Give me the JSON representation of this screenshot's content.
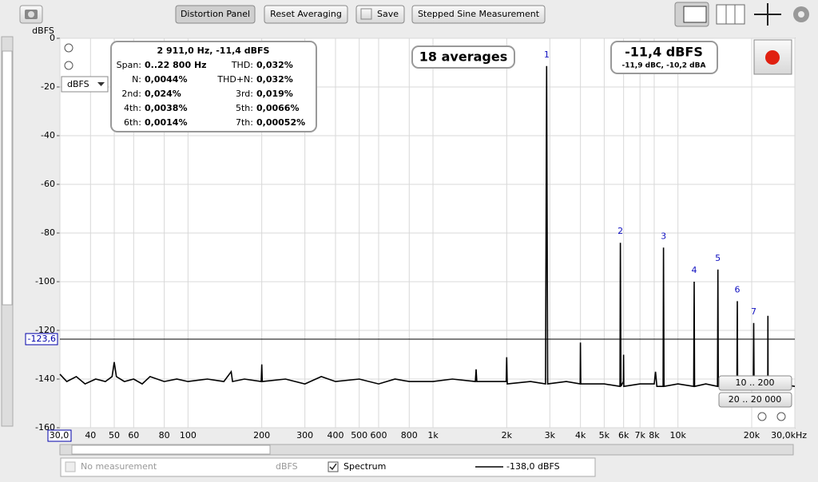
{
  "toolbar": {
    "buttons": [
      "Distortion Panel",
      "Reset Averaging",
      "Save",
      "Stepped Sine Measurement"
    ]
  },
  "chart_data": {
    "type": "line",
    "y_label": "dBFS",
    "unit_select": "dBFS",
    "log_x": true,
    "grid": true,
    "xlim": [
      30,
      30000
    ],
    "ylim": [
      -160,
      0
    ],
    "xticks": [
      {
        "value": 30,
        "label": "30,0"
      },
      40,
      50,
      60,
      80,
      100,
      200,
      300,
      400,
      500,
      600,
      800,
      {
        "value": 1000,
        "label": "1k"
      },
      {
        "value": 2000,
        "label": "2k"
      },
      {
        "value": 3000,
        "label": "3k"
      },
      {
        "value": 4000,
        "label": "4k"
      },
      {
        "value": 5000,
        "label": "5k"
      },
      {
        "value": 6000,
        "label": "6k"
      },
      {
        "value": 7000,
        "label": "7k"
      },
      {
        "value": 8000,
        "label": "8k"
      },
      {
        "value": 10000,
        "label": "10k"
      },
      {
        "value": 20000,
        "label": "20k"
      },
      {
        "value": 30000,
        "label": "30,0kHz"
      }
    ],
    "yticks": [
      0,
      -20,
      -40,
      -60,
      -80,
      -100,
      -120,
      -140,
      -160
    ],
    "series": [
      {
        "name": "Spectrum",
        "color": "#000000",
        "x": [
          30,
          32,
          35,
          38,
          42,
          46,
          49,
          50,
          51,
          55,
          60,
          65,
          70,
          80,
          90,
          100,
          120,
          140,
          150,
          152,
          170,
          199,
          200,
          201,
          250,
          300,
          350,
          400,
          500,
          600,
          700,
          800,
          1000,
          1200,
          1490,
          1500,
          1510,
          1800,
          1990,
          2000,
          2010,
          2500,
          2880,
          2911,
          2940,
          3500,
          3990,
          4000,
          4010,
          5000,
          5800,
          5822,
          5850,
          5990,
          6000,
          6010,
          7000,
          8000,
          8100,
          8200,
          8700,
          8733,
          8770,
          10000,
          11600,
          11644,
          11690,
          13000,
          14500,
          14555,
          14610,
          17400,
          17466,
          17530,
          20300,
          20377,
          20450,
          23250,
          23288,
          23330,
          26000,
          30000
        ],
        "values": [
          -138,
          -141,
          -139,
          -142,
          -140,
          -141,
          -139,
          -133,
          -139,
          -141,
          -140,
          -142,
          -139,
          -141,
          -140,
          -141,
          -140,
          -141,
          -137,
          -141,
          -140,
          -141,
          -134,
          -141,
          -140,
          -142,
          -139,
          -141,
          -140,
          -142,
          -140,
          -141,
          -141,
          -140,
          -141,
          -136,
          -141,
          -141,
          -141,
          -131,
          -142,
          -141,
          -142,
          -11.4,
          -142,
          -141,
          -142,
          -125,
          -142,
          -142,
          -143,
          -84,
          -143,
          -141,
          -130,
          -143,
          -142,
          -142,
          -137,
          -143,
          -143,
          -86,
          -143,
          -142,
          -143,
          -100,
          -143,
          -142,
          -143,
          -95,
          -143,
          -143,
          -108,
          -143,
          -143,
          -117,
          -143,
          -143,
          -114,
          -143,
          -142,
          -143
        ]
      }
    ],
    "harmonics": {
      "labels": [
        "1",
        "2",
        "3",
        "4",
        "5",
        "6",
        "7"
      ],
      "x": [
        2911,
        5822,
        8733,
        11644,
        14555,
        17466,
        20377
      ]
    },
    "cursor": {
      "value": -123.6,
      "label": "-123,6"
    }
  },
  "info_panel": {
    "header": "2 911,0 Hz, -11,4 dBFS",
    "rows": [
      [
        "Span:",
        "0..22 800 Hz",
        "THD:",
        "0,032%"
      ],
      [
        "N:",
        "0,0044%",
        "THD+N:",
        "0,032%"
      ],
      [
        "2nd:",
        "0,024%",
        "3rd:",
        "0,019%"
      ],
      [
        "4th:",
        "0,0038%",
        "5th:",
        "0,0066%"
      ],
      [
        "6th:",
        "0,0014%",
        "7th:",
        "0,00052%"
      ]
    ]
  },
  "averages": "18 averages",
  "level": {
    "main": "-11,4 dBFS",
    "sub": "-11,9 dBC, -10,2 dBA"
  },
  "range_buttons": [
    "10 .. 200",
    "20 .. 20 000"
  ],
  "legend_bar": {
    "no_measurement": "No measurement",
    "unit": "dBFS",
    "value": "-138,0 dBFS"
  }
}
